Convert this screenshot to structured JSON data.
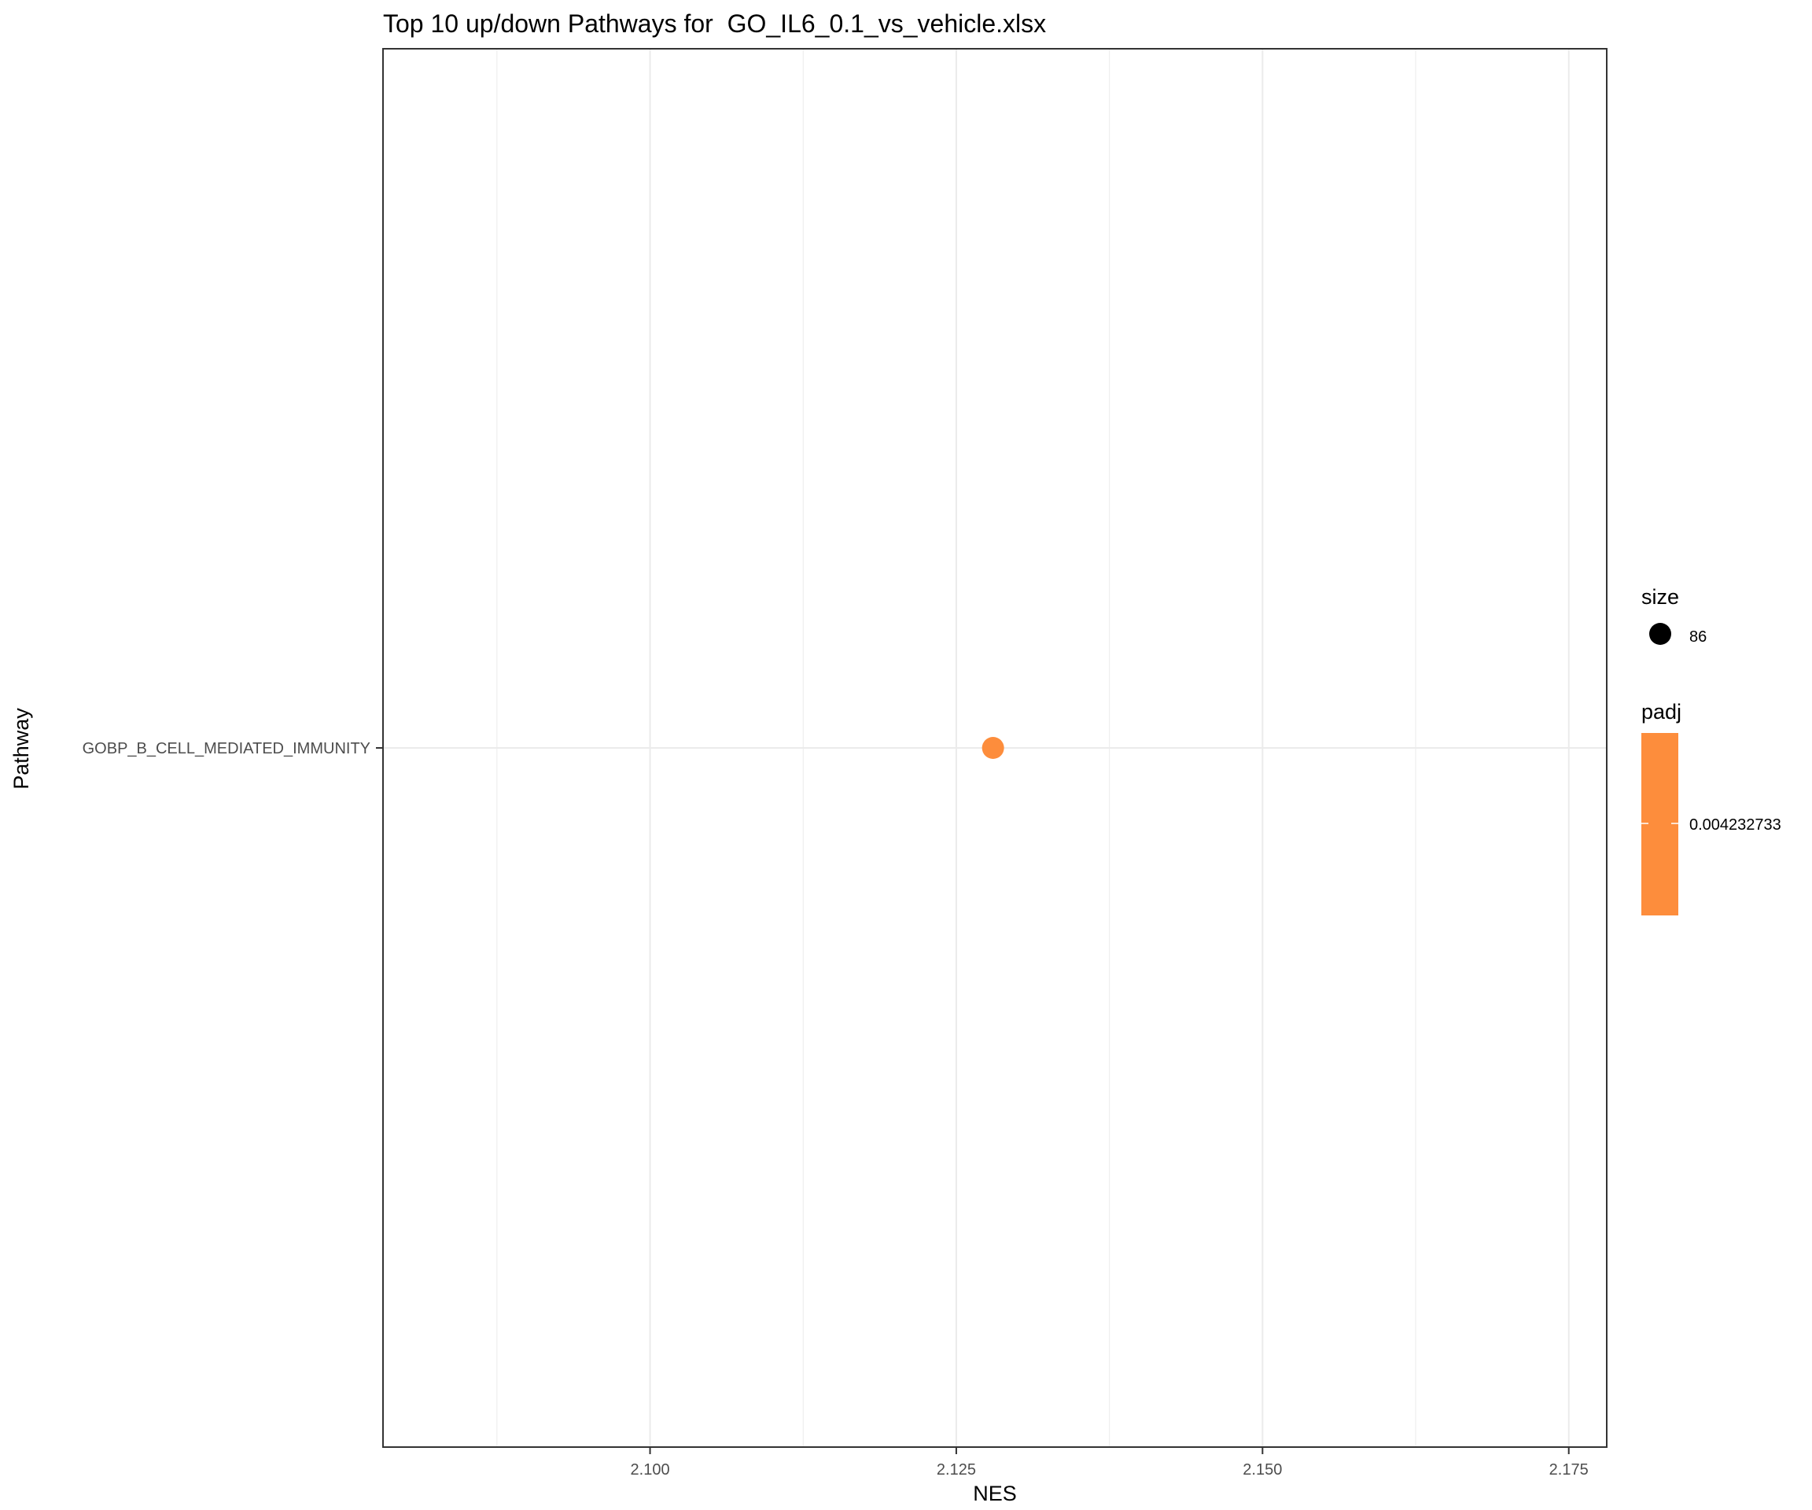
{
  "chart_data": {
    "type": "scatter",
    "title": "Top 10 up/down Pathways for  GO_IL6_0.1_vs_vehicle.xlsx",
    "xlabel": "NES",
    "ylabel": "Pathway",
    "xlim": [
      2.0782,
      2.1781
    ],
    "x_ticks": [
      2.1,
      2.125,
      2.15,
      2.175
    ],
    "x_tick_labels": [
      "2.100",
      "2.125",
      "2.150",
      "2.175"
    ],
    "categories": [
      "GOBP_B_CELL_MEDIATED_IMMUNITY"
    ],
    "points": [
      {
        "pathway": "GOBP_B_CELL_MEDIATED_IMMUNITY",
        "nes": 2.128,
        "size": 86,
        "padj": 0.004232733
      }
    ],
    "grid": true,
    "legend_position": "right",
    "legends": {
      "size": {
        "title": "size",
        "values": [
          "86"
        ]
      },
      "padj": {
        "title": "padj",
        "values": [
          "0.004232733"
        ]
      }
    },
    "colors": {
      "point": "#fd8d3c",
      "gridline": "#ebebeb",
      "panel_border": "#333333",
      "size_key": "#000000"
    }
  }
}
